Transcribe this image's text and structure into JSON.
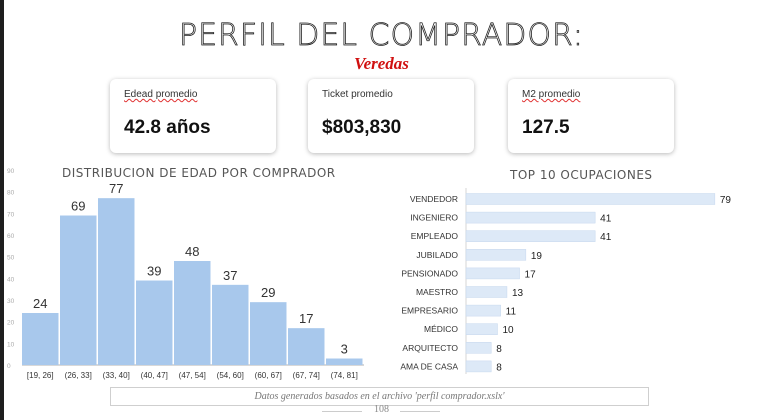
{
  "header": {
    "title": "PERFIL DEL COMPRADOR:",
    "subtitle": "Veredas"
  },
  "kpis": [
    {
      "label": "Edead promedio",
      "value": "42.8 años"
    },
    {
      "label": "Ticket promedio",
      "value": "$803,830"
    },
    {
      "label": "M2 promedio",
      "value": "127.5"
    }
  ],
  "chart_data": [
    {
      "type": "bar",
      "title": "DISTRIBUCION DE EDAD POR COMPRADOR",
      "categories": [
        "[19, 26]",
        "(26, 33]",
        "(33, 40]",
        "(40, 47]",
        "(47, 54]",
        "(54, 60]",
        "(60, 67]",
        "(67, 74]",
        "(74, 81]"
      ],
      "values": [
        24,
        69,
        77,
        39,
        48,
        37,
        29,
        17,
        3
      ],
      "ylim": [
        0,
        90
      ],
      "yticks": [
        "0",
        "10",
        "20",
        "30",
        "40",
        "50",
        "60",
        "70",
        "80",
        "90"
      ],
      "xlabel": "",
      "ylabel": "",
      "bar_color": "#a8c8ec",
      "orientation": "vertical"
    },
    {
      "type": "bar",
      "orientation": "horizontal",
      "title": "TOP 10 OCUPACIONES",
      "categories": [
        "VENDEDOR",
        "INGENIERO",
        "EMPLEADO",
        "JUBILADO",
        "PENSIONADO",
        "MAESTRO",
        "EMPRESARIO",
        "MÉDICO",
        "ARQUITECTO",
        "AMA DE CASA"
      ],
      "values": [
        79,
        41,
        41,
        19,
        17,
        13,
        11,
        10,
        8,
        8
      ],
      "xlim": [
        0,
        80
      ],
      "bar_color": "#dde9f7"
    }
  ],
  "footer": {
    "note": "Datos generados basados en el archivo 'perfil comprador.xslx'",
    "page_number": "108"
  }
}
